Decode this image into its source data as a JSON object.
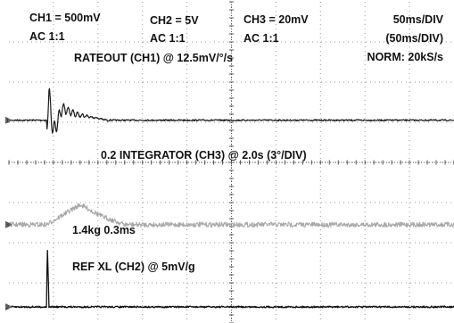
{
  "header": {
    "ch1": {
      "scale": "CH1 = 500mV",
      "coupling": "AC 1:1"
    },
    "ch2": {
      "scale": "CH2 = 5V",
      "coupling": "AC 1:1"
    },
    "ch3": {
      "scale": "CH3 = 20mV",
      "coupling": "AC 1:1"
    },
    "timebase": "50ms/DIV",
    "timebase_sub": "(50ms/DIV)",
    "sample_rate": "NORM: 20kS/s"
  },
  "colors": {
    "background": "#ffffff",
    "grid": "#9a9a9a",
    "axis": "#555555",
    "trace_ch1": "#1a1a1a",
    "trace_ch2": "#111111",
    "trace_ch3": "#a8a8a8"
  },
  "chart_data": {
    "type": "line",
    "title": "",
    "xlabel": "",
    "ylabel": "",
    "grid": true,
    "divisions": {
      "horizontal": 10,
      "vertical": 8
    },
    "time_per_div_ms": 50,
    "series": [
      {
        "name": "RATEOUT (CH1) @ 12.5mV/°/s",
        "label": "RATEOUT (CH1) @ 12.5mV/°/s",
        "marker_label": "1",
        "baseline_div": 2.95,
        "volts_per_div": 0.5,
        "description_points": [
          {
            "t_div": 0.0,
            "y_div": 0.0
          },
          {
            "t_div": 0.85,
            "y_div": 0.0
          },
          {
            "t_div": 0.9,
            "y_div": 0.6
          },
          {
            "t_div": 1.0,
            "y_div": -0.3
          },
          {
            "t_div": 1.2,
            "y_div": 0.3
          },
          {
            "t_div": 1.5,
            "y_div": 0.15
          },
          {
            "t_div": 2.0,
            "y_div": 0.05
          },
          {
            "t_div": 2.2,
            "y_div": 0.0
          },
          {
            "t_div": 10.0,
            "y_div": 0.0
          }
        ]
      },
      {
        "name": "0.2 INTEGRATOR (CH3) @ 2.0s (3°/DIV)",
        "label": "0.2 INTEGRATOR (CH3) @ 2.0s (3°/DIV)",
        "marker_label": "3",
        "baseline_div": 5.55,
        "volts_per_div": 0.02,
        "description_points": [
          {
            "t_div": 0.0,
            "y_div": 0.0
          },
          {
            "t_div": 0.85,
            "y_div": 0.0
          },
          {
            "t_div": 1.6,
            "y_div": 0.5
          },
          {
            "t_div": 2.1,
            "y_div": 0.2
          },
          {
            "t_div": 2.6,
            "y_div": 0.0
          },
          {
            "t_div": 10.0,
            "y_div": 0.0
          }
        ]
      },
      {
        "name": "REF XL (CH2) @ 5mV/g",
        "label": "REF XL (CH2) @ 5mV/g",
        "marker_label": "2",
        "baseline_div": 7.6,
        "volts_per_div": 5,
        "description_points": [
          {
            "t_div": 0.0,
            "y_div": 0.0
          },
          {
            "t_div": 0.85,
            "y_div": 0.0
          },
          {
            "t_div": 0.86,
            "y_div": 1.7
          },
          {
            "t_div": 0.9,
            "y_div": 0.0
          },
          {
            "t_div": 10.0,
            "y_div": 0.0
          }
        ]
      }
    ],
    "annotations": [
      {
        "text": "1.4kg 0.3ms",
        "series": "REF XL (CH2) @ 5mV/g"
      }
    ]
  }
}
